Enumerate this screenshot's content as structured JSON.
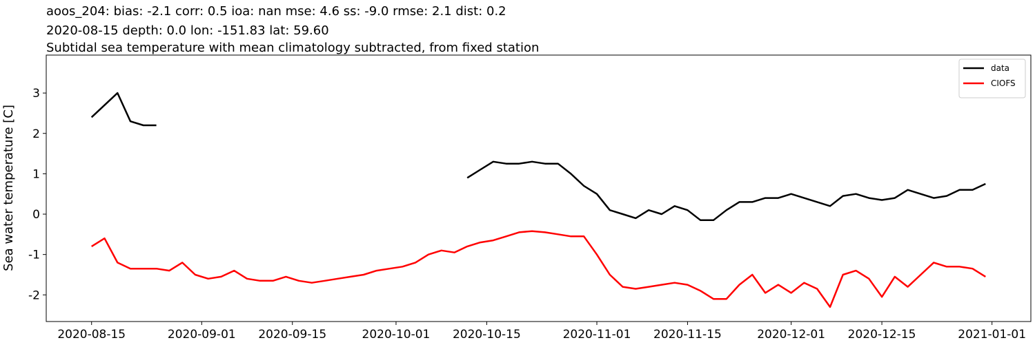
{
  "chart_data": {
    "type": "line",
    "title": "aoos_204: bias: -2.1  corr: 0.5  ioa: nan  mse: 4.6  ss: -9.0  rmse: 2.1  dist: 0.2",
    "subtitle": "2020-08-15 depth: 0.0 lon: -151.83 lat: 59.60",
    "subtitle2": "Subtidal sea temperature with mean climatology subtracted, from fixed station",
    "ylabel": "Sea water temperature [C]",
    "x": [
      "2020-08-15",
      "2020-08-17",
      "2020-08-19",
      "2020-08-21",
      "2020-08-23",
      "2020-08-25",
      "2020-08-27",
      "2020-08-29",
      "2020-08-31",
      "2020-09-02",
      "2020-09-04",
      "2020-09-06",
      "2020-09-08",
      "2020-09-10",
      "2020-09-12",
      "2020-09-14",
      "2020-09-16",
      "2020-09-18",
      "2020-09-20",
      "2020-09-22",
      "2020-09-24",
      "2020-09-26",
      "2020-09-28",
      "2020-09-30",
      "2020-10-02",
      "2020-10-04",
      "2020-10-06",
      "2020-10-08",
      "2020-10-10",
      "2020-10-12",
      "2020-10-14",
      "2020-10-16",
      "2020-10-18",
      "2020-10-20",
      "2020-10-22",
      "2020-10-24",
      "2020-10-26",
      "2020-10-28",
      "2020-10-30",
      "2020-11-01",
      "2020-11-03",
      "2020-11-05",
      "2020-11-07",
      "2020-11-09",
      "2020-11-11",
      "2020-11-13",
      "2020-11-15",
      "2020-11-17",
      "2020-11-19",
      "2020-11-21",
      "2020-11-23",
      "2020-11-25",
      "2020-11-27",
      "2020-11-29",
      "2020-12-01",
      "2020-12-03",
      "2020-12-05",
      "2020-12-07",
      "2020-12-09",
      "2020-12-11",
      "2020-12-13",
      "2020-12-15",
      "2020-12-17",
      "2020-12-19",
      "2020-12-21",
      "2020-12-23",
      "2020-12-25",
      "2020-12-27",
      "2020-12-29",
      "2020-12-31"
    ],
    "series": [
      {
        "name": "data",
        "color": "#000000",
        "values": [
          2.4,
          2.7,
          3.0,
          2.3,
          2.2,
          2.2,
          null,
          null,
          null,
          null,
          null,
          null,
          null,
          null,
          null,
          null,
          null,
          null,
          null,
          null,
          null,
          null,
          null,
          null,
          null,
          null,
          null,
          null,
          null,
          0.9,
          1.1,
          1.3,
          1.25,
          1.25,
          1.3,
          1.25,
          1.25,
          1.0,
          0.7,
          0.5,
          0.1,
          0.0,
          -0.1,
          0.1,
          0.0,
          0.2,
          0.1,
          -0.15,
          -0.15,
          0.1,
          0.3,
          0.3,
          0.4,
          0.4,
          0.5,
          0.4,
          0.3,
          0.2,
          0.45,
          0.5,
          0.4,
          0.35,
          0.4,
          0.6,
          0.5,
          0.4,
          0.45,
          0.6,
          0.6,
          0.75
        ]
      },
      {
        "name": "CIOFS",
        "color": "#ff0000",
        "values": [
          -0.8,
          -0.6,
          -1.2,
          -1.35,
          -1.35,
          -1.35,
          -1.4,
          -1.2,
          -1.5,
          -1.6,
          -1.55,
          -1.4,
          -1.6,
          -1.65,
          -1.65,
          -1.55,
          -1.65,
          -1.7,
          -1.65,
          -1.6,
          -1.55,
          -1.5,
          -1.4,
          -1.35,
          -1.3,
          -1.2,
          -1.0,
          -0.9,
          -0.95,
          -0.8,
          -0.7,
          -0.65,
          -0.55,
          -0.45,
          -0.42,
          -0.45,
          -0.5,
          -0.55,
          -0.55,
          -1.0,
          -1.5,
          -1.8,
          -1.85,
          -1.8,
          -1.75,
          -1.7,
          -1.75,
          -1.9,
          -2.1,
          -2.1,
          -1.75,
          -1.5,
          -1.95,
          -1.75,
          -1.95,
          -1.7,
          -1.85,
          -2.3,
          -1.5,
          -1.4,
          -1.6,
          -2.05,
          -1.55,
          -1.8,
          -1.5,
          -1.2,
          -1.3,
          -1.3,
          -1.35,
          -1.55
        ]
      }
    ],
    "xlim": [
      "2020-08-08",
      "2021-01-07"
    ],
    "xticks": [
      "2020-08-15",
      "2020-09-01",
      "2020-09-15",
      "2020-10-01",
      "2020-10-15",
      "2020-11-01",
      "2020-11-15",
      "2020-12-01",
      "2020-12-15",
      "2021-01-01"
    ],
    "ylim": [
      -2.66,
      3.94
    ],
    "yticks": [
      -2,
      -1,
      0,
      1,
      2,
      3
    ],
    "legend": "upper right"
  }
}
